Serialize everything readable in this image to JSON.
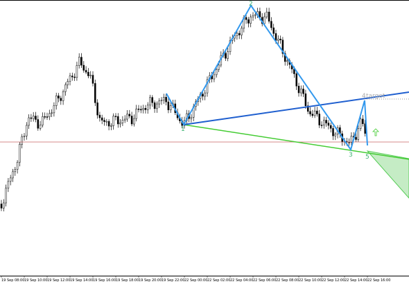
{
  "x_axis": {
    "labels": [
      "19 Sep 08:00",
      "19 Sep 10:00",
      "19 Sep 12:00",
      "19 Sep 14:00",
      "19 Sep 16:00",
      "19 Sep 18:00",
      "19 Sep 20:00",
      "19 Sep 22:00",
      "22 Sep 00:00",
      "22 Sep 02:00",
      "22 Sep 04:00",
      "22 Sep 06:00",
      "22 Sep 08:00",
      "22 Sep 10:00",
      "22 Sep 12:00",
      "22 Sep 14:00",
      "22 Sep 16:00"
    ]
  },
  "pattern": {
    "points": [
      "1",
      "2",
      "3",
      "4",
      "5"
    ],
    "target": "target"
  }
}
